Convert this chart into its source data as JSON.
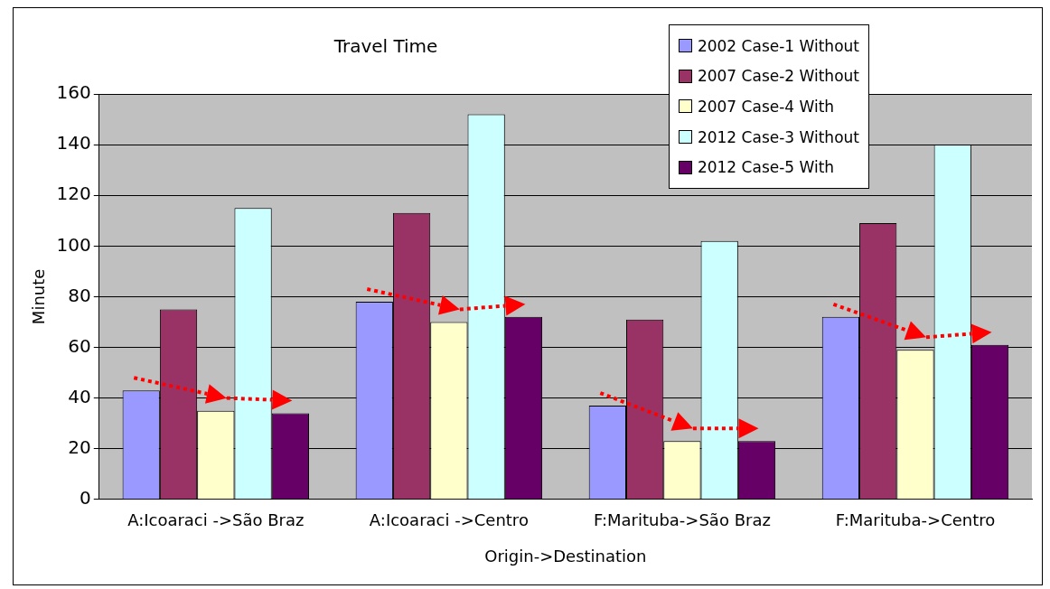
{
  "chart_data": {
    "type": "bar",
    "title": "Travel Time",
    "xlabel": "Origin->Destination",
    "ylabel": "Minute",
    "categories": [
      "A:Icoaraci ->São Braz",
      "A:Icoaraci ->Centro",
      "F:Marituba->São Braz",
      "F:Marituba->Centro"
    ],
    "series": [
      {
        "name": "2002 Case-1 Without",
        "color": "#9999ff",
        "values": [
          43,
          78,
          37,
          72
        ]
      },
      {
        "name": "2007 Case-2 Without",
        "color": "#993366",
        "values": [
          75,
          113,
          71,
          109
        ]
      },
      {
        "name": "2007 Case-4 With",
        "color": "#ffffcc",
        "values": [
          35,
          70,
          23,
          59
        ]
      },
      {
        "name": "2012 Case-3 Without",
        "color": "#ccffff",
        "values": [
          115,
          152,
          102,
          140
        ]
      },
      {
        "name": "2012 Case-5 With",
        "color": "#660066",
        "values": [
          34,
          72,
          23,
          61
        ]
      }
    ],
    "ylim": [
      0,
      160
    ],
    "yticks": [
      0,
      20,
      40,
      60,
      80,
      100,
      120,
      140,
      160
    ],
    "grid": "y",
    "legend": "top right"
  }
}
